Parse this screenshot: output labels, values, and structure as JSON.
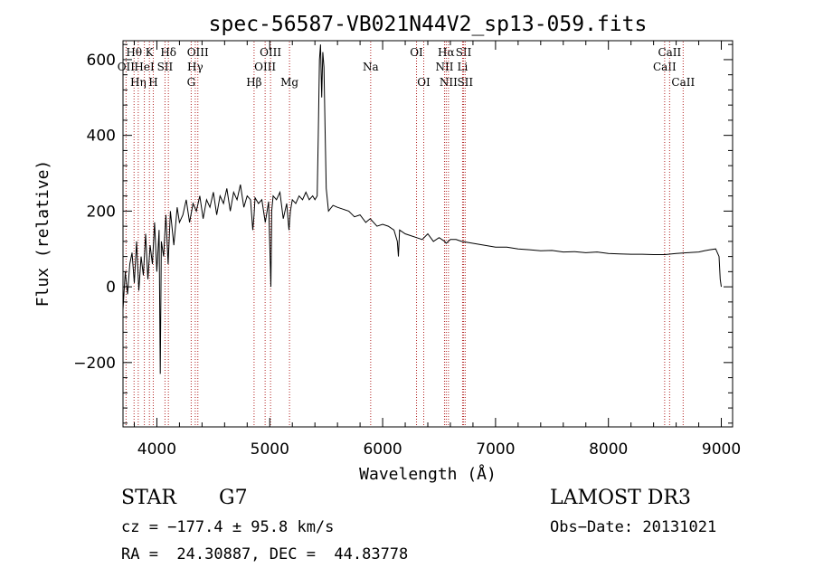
{
  "chart_data": {
    "type": "line",
    "title": "spec-56587-VB021N44V2_sp13-059.fits",
    "xlabel": "Wavelength (Å)",
    "ylabel": "Flux (relative)",
    "xlim": [
      3700,
      9100
    ],
    "ylim": [
      -370,
      650
    ],
    "xticks": [
      4000,
      5000,
      6000,
      7000,
      8000,
      9000
    ],
    "yticks": [
      -200,
      0,
      200,
      400,
      600
    ],
    "xtick_labels": [
      "4000",
      "5000",
      "6000",
      "7000",
      "8000",
      "9000"
    ],
    "ytick_labels": [
      "−200",
      "0",
      "200",
      "400",
      "600"
    ],
    "series": [
      {
        "name": "flux",
        "x": [
          3700,
          3720,
          3740,
          3760,
          3780,
          3800,
          3820,
          3840,
          3860,
          3880,
          3900,
          3920,
          3940,
          3960,
          3980,
          4000,
          4020,
          4030,
          4040,
          4060,
          4080,
          4100,
          4120,
          4150,
          4180,
          4200,
          4230,
          4260,
          4290,
          4320,
          4350,
          4380,
          4410,
          4440,
          4470,
          4500,
          4530,
          4560,
          4590,
          4620,
          4650,
          4680,
          4710,
          4740,
          4770,
          4800,
          4830,
          4850,
          4861,
          4870,
          4900,
          4930,
          4960,
          4990,
          5010,
          5017,
          5030,
          5060,
          5090,
          5120,
          5150,
          5170,
          5183,
          5200,
          5230,
          5260,
          5290,
          5320,
          5350,
          5380,
          5400,
          5420,
          5430,
          5440,
          5450,
          5460,
          5470,
          5480,
          5490,
          5500,
          5520,
          5560,
          5600,
          5650,
          5700,
          5750,
          5800,
          5850,
          5890,
          5950,
          6000,
          6050,
          6100,
          6130,
          6140,
          6150,
          6200,
          6250,
          6300,
          6350,
          6400,
          6450,
          6500,
          6550,
          6563,
          6600,
          6650,
          6700,
          6800,
          6900,
          7000,
          7100,
          7200,
          7300,
          7400,
          7500,
          7600,
          7700,
          7800,
          7900,
          8000,
          8100,
          8200,
          8300,
          8400,
          8500,
          8600,
          8700,
          8800,
          8850,
          8900,
          8950,
          8980,
          8990,
          9000
        ],
        "values": [
          -60,
          40,
          -20,
          60,
          90,
          10,
          120,
          -10,
          80,
          30,
          140,
          20,
          110,
          60,
          170,
          40,
          150,
          -230,
          120,
          80,
          190,
          60,
          200,
          110,
          210,
          170,
          190,
          230,
          170,
          220,
          200,
          240,
          180,
          230,
          210,
          250,
          190,
          240,
          220,
          260,
          200,
          250,
          230,
          270,
          210,
          240,
          230,
          150,
          190,
          235,
          220,
          230,
          170,
          225,
          0,
          200,
          240,
          230,
          250,
          180,
          220,
          150,
          200,
          230,
          220,
          240,
          230,
          250,
          230,
          240,
          230,
          240,
          400,
          600,
          640,
          500,
          620,
          580,
          420,
          260,
          200,
          215,
          210,
          205,
          200,
          185,
          190,
          170,
          180,
          160,
          165,
          160,
          150,
          120,
          80,
          150,
          140,
          135,
          130,
          125,
          140,
          120,
          130,
          120,
          115,
          125,
          125,
          120,
          115,
          110,
          105,
          105,
          100,
          98,
          95,
          96,
          92,
          93,
          90,
          92,
          88,
          87,
          86,
          86,
          85,
          85,
          88,
          90,
          92,
          95,
          98,
          100,
          80,
          20,
          0
        ]
      }
    ],
    "line_markers": [
      {
        "label": "OII",
        "wavelength": 3727,
        "row": 2
      },
      {
        "label": "Hθ",
        "wavelength": 3798,
        "row": 1
      },
      {
        "label": "Hη",
        "wavelength": 3835,
        "row": 3
      },
      {
        "label": "HeI",
        "wavelength": 3889,
        "row": 2
      },
      {
        "label": "K",
        "wavelength": 3934,
        "row": 1
      },
      {
        "label": "H",
        "wavelength": 3968,
        "row": 3
      },
      {
        "label": "SII",
        "wavelength": 4072,
        "row": 2
      },
      {
        "label": "Hδ",
        "wavelength": 4102,
        "row": 1
      },
      {
        "label": "G",
        "wavelength": 4304,
        "row": 3
      },
      {
        "label": "Hγ",
        "wavelength": 4340,
        "row": 2
      },
      {
        "label": "OIII",
        "wavelength": 4363,
        "row": 1
      },
      {
        "label": "Hβ",
        "wavelength": 4861,
        "row": 3
      },
      {
        "label": "OIII",
        "wavelength": 4959,
        "row": 2
      },
      {
        "label": "OIII",
        "wavelength": 5007,
        "row": 1
      },
      {
        "label": "Mg",
        "wavelength": 5175,
        "row": 3
      },
      {
        "label": "Na",
        "wavelength": 5894,
        "row": 2
      },
      {
        "label": "OI",
        "wavelength": 6300,
        "row": 1
      },
      {
        "label": "OI",
        "wavelength": 6364,
        "row": 3
      },
      {
        "label": "NII",
        "wavelength": 6548,
        "row": 2
      },
      {
        "label": "Hα",
        "wavelength": 6563,
        "row": 1
      },
      {
        "label": "NII",
        "wavelength": 6583,
        "row": 3
      },
      {
        "label": "Li",
        "wavelength": 6708,
        "row": 2
      },
      {
        "label": "SII",
        "wavelength": 6717,
        "row": 1
      },
      {
        "label": "SII",
        "wavelength": 6731,
        "row": 3
      },
      {
        "label": "CaII",
        "wavelength": 8498,
        "row": 2
      },
      {
        "label": "CaII",
        "wavelength": 8542,
        "row": 1
      },
      {
        "label": "CaII",
        "wavelength": 8662,
        "row": 3
      }
    ],
    "grid": false,
    "marker_color": "#b22222",
    "line_color": "#000000"
  },
  "footer": {
    "class_label": "STAR",
    "subclass": "G7",
    "survey": "LAMOST DR3",
    "redshift": "cz = −177.4 ± 95.8 km/s",
    "obs_date": "Obs−Date: 20131021",
    "coords": "RA =  24.30887, DEC =  44.83778"
  }
}
